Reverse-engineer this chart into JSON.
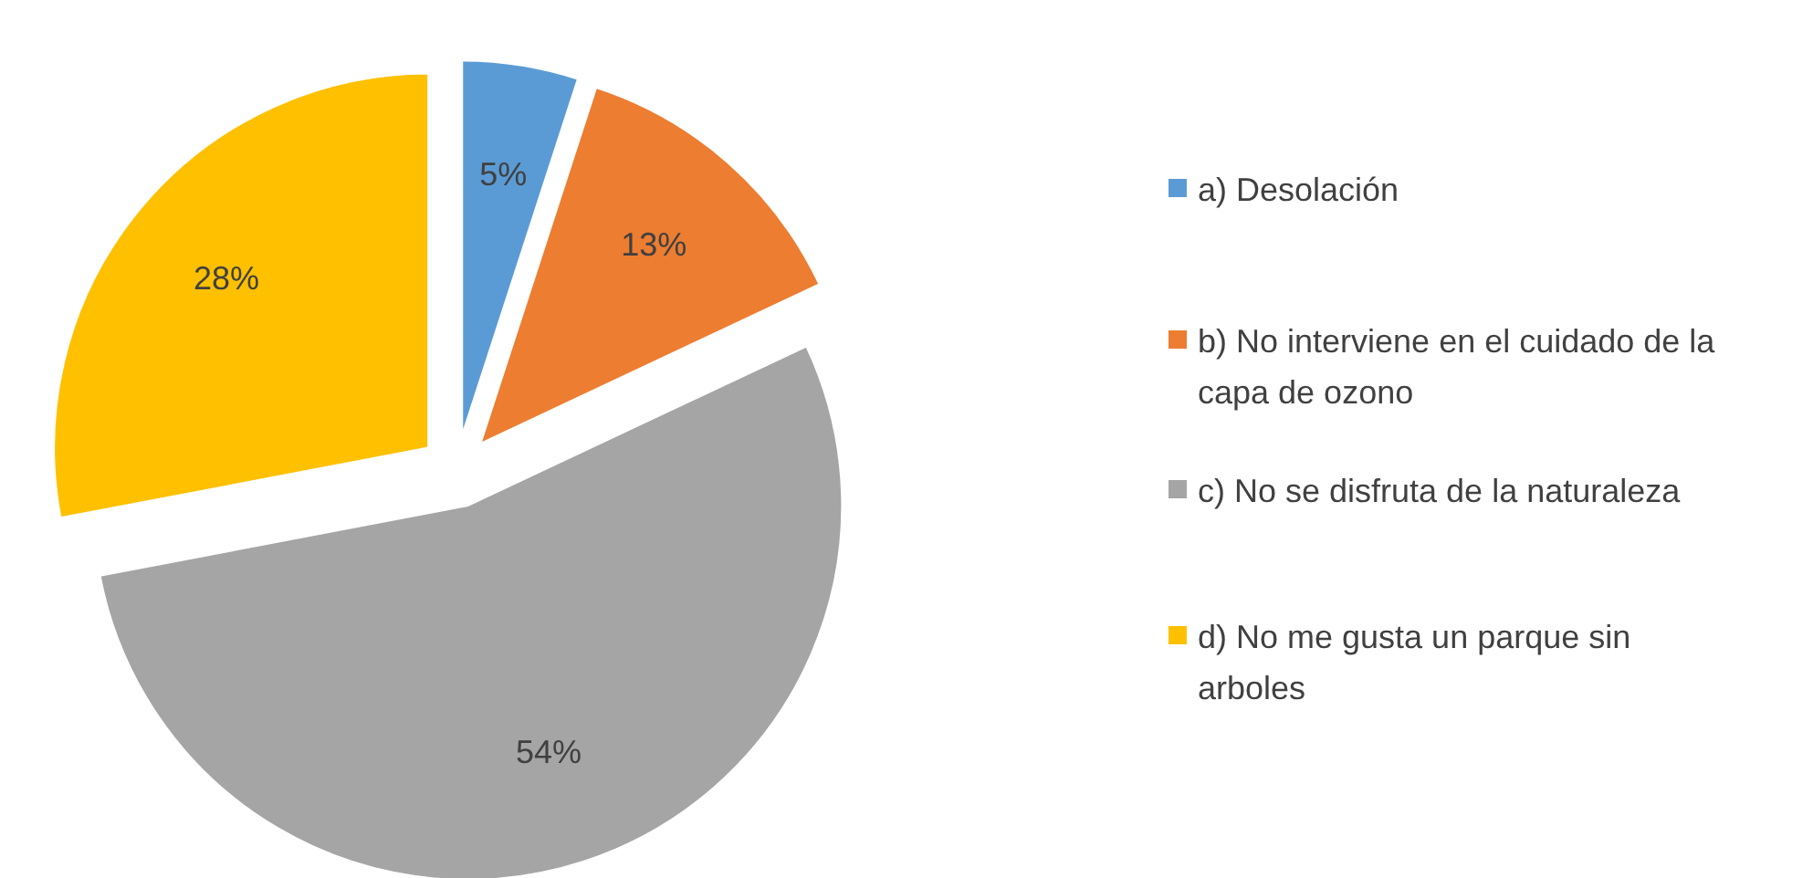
{
  "chart_data": {
    "type": "pie",
    "categories": [
      "a) Desolación",
      "b) No interviene en el cuidado de la capa de ozono",
      "c) No se disfruta de la naturaleza",
      "d) No me gusta un parque sin arboles"
    ],
    "values": [
      5,
      13,
      54,
      28
    ],
    "colors": [
      "#5b9bd5",
      "#ed7d31",
      "#a5a5a5",
      "#ffc000"
    ],
    "value_labels": [
      "5%",
      "13%",
      "54%",
      "28%"
    ],
    "legend": "right"
  }
}
